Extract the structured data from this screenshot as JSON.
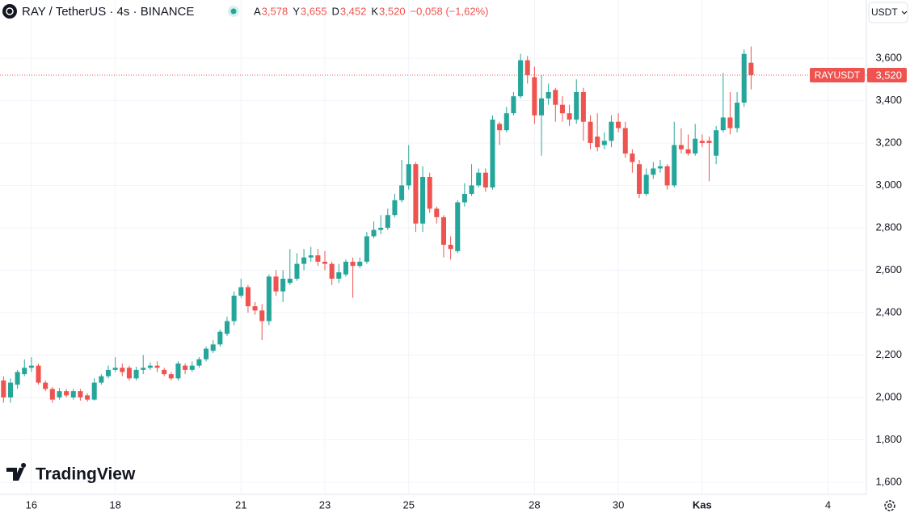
{
  "header": {
    "symbol": "RAY / TetherUS · 4s · BINANCE",
    "ohlc": [
      {
        "key": "A",
        "text": "3,578"
      },
      {
        "key": "Y",
        "text": "3,655"
      },
      {
        "key": "D",
        "text": "3,452"
      },
      {
        "key": "K",
        "text": "3,520"
      }
    ],
    "change": "−0,058 (−1,62%)",
    "currency": "USDT",
    "brand": "TradingView"
  },
  "chart_data": {
    "type": "candlestick",
    "categories": [
      null,
      null,
      null,
      null,
      "16",
      null,
      null,
      null,
      null,
      null,
      null,
      null,
      null,
      null,
      null,
      null,
      "18",
      null,
      null,
      null,
      null,
      null,
      null,
      null,
      null,
      null,
      null,
      null,
      null,
      null,
      null,
      null,
      null,
      null,
      "21",
      null,
      null,
      null,
      null,
      null,
      null,
      null,
      null,
      null,
      null,
      null,
      "23",
      null,
      null,
      null,
      null,
      null,
      null,
      null,
      null,
      null,
      null,
      null,
      "25",
      null,
      null,
      null,
      null,
      null,
      null,
      null,
      null,
      null,
      null,
      null,
      null,
      null,
      null,
      null,
      null,
      null,
      "28",
      null,
      null,
      null,
      null,
      null,
      null,
      null,
      null,
      null,
      null,
      null,
      "30",
      null,
      null,
      null,
      null,
      null,
      null,
      null,
      null,
      null,
      null,
      null,
      "Kas",
      null,
      null,
      null,
      null,
      null,
      null,
      null,
      null,
      null,
      null,
      null,
      null,
      null,
      null,
      null,
      null,
      null,
      "4",
      null,
      null,
      null,
      null,
      null
    ],
    "open": [
      2.08,
      2.0,
      2.06,
      2.11,
      2.14,
      2.15,
      2.07,
      2.04,
      2.0,
      2.03,
      2.0,
      2.03,
      2.01,
      1.99,
      2.07,
      2.1,
      2.13,
      2.14,
      2.14,
      2.09,
      2.13,
      2.14,
      2.15,
      2.13,
      2.11,
      2.09,
      2.15,
      2.13,
      2.15,
      2.18,
      2.22,
      2.25,
      2.3,
      2.36,
      2.48,
      2.52,
      2.43,
      2.41,
      2.36,
      2.57,
      2.5,
      2.54,
      2.56,
      2.63,
      2.66,
      2.67,
      2.64,
      2.63,
      2.56,
      2.58,
      2.64,
      2.62,
      2.64,
      2.76,
      2.79,
      2.8,
      2.86,
      2.93,
      3.0,
      3.1,
      2.82,
      3.04,
      2.89,
      2.85,
      2.72,
      2.69,
      2.92,
      2.96,
      3.0,
      3.06,
      2.99,
      3.29,
      3.26,
      3.34,
      3.42,
      3.59,
      3.51,
      3.33,
      3.41,
      3.45,
      3.38,
      3.34,
      3.31,
      3.44,
      3.3,
      3.23,
      3.19,
      3.21,
      3.3,
      3.27,
      3.15,
      3.1,
      2.96,
      3.05,
      3.08,
      3.09,
      3.0,
      3.19,
      3.17,
      3.15,
      3.21,
      3.21,
      3.14,
      3.26,
      3.32,
      3.27,
      3.39,
      3.578,
      null,
      null,
      null,
      null,
      null,
      null,
      null,
      null,
      null,
      null,
      null,
      null,
      null,
      null,
      null,
      null
    ],
    "high": [
      2.1,
      2.09,
      2.13,
      2.18,
      2.19,
      2.16,
      2.08,
      2.05,
      2.045,
      2.04,
      2.04,
      2.04,
      2.02,
      2.09,
      2.11,
      2.15,
      2.19,
      2.16,
      2.15,
      2.145,
      2.2,
      2.165,
      2.17,
      2.14,
      2.12,
      2.17,
      2.16,
      2.17,
      2.19,
      2.24,
      2.27,
      2.32,
      2.38,
      2.5,
      2.56,
      2.53,
      2.45,
      2.44,
      2.58,
      2.6,
      2.6,
      2.7,
      2.68,
      2.7,
      2.71,
      2.7,
      2.69,
      2.64,
      2.63,
      2.65,
      2.66,
      2.66,
      2.78,
      2.83,
      2.86,
      2.89,
      2.96,
      3.12,
      3.19,
      3.11,
      3.09,
      3.06,
      2.9,
      2.86,
      2.76,
      2.93,
      3.01,
      3.1,
      3.08,
      3.08,
      3.33,
      3.3,
      3.37,
      3.44,
      3.62,
      3.61,
      3.56,
      3.52,
      3.48,
      3.46,
      3.42,
      3.38,
      3.5,
      3.46,
      3.33,
      3.34,
      3.25,
      3.33,
      3.34,
      3.3,
      3.17,
      3.12,
      3.08,
      3.11,
      3.12,
      3.1,
      3.3,
      3.27,
      3.24,
      3.29,
      3.24,
      3.23,
      3.28,
      3.53,
      3.44,
      3.44,
      3.64,
      3.655,
      null,
      null,
      null,
      null,
      null,
      null,
      null,
      null,
      null,
      null,
      null,
      null,
      null,
      null,
      null,
      null
    ],
    "low": [
      1.975,
      1.975,
      2.04,
      2.1,
      2.12,
      2.06,
      2.03,
      1.975,
      1.99,
      2.0,
      1.99,
      1.985,
      1.98,
      1.985,
      2.06,
      2.09,
      2.12,
      2.1,
      2.08,
      2.08,
      2.11,
      2.13,
      2.12,
      2.1,
      2.08,
      2.08,
      2.11,
      2.12,
      2.14,
      2.17,
      2.21,
      2.24,
      2.29,
      2.34,
      2.47,
      2.4,
      2.39,
      2.27,
      2.34,
      2.48,
      2.45,
      2.53,
      2.55,
      2.6,
      2.64,
      2.62,
      2.6,
      2.53,
      2.54,
      2.57,
      2.47,
      2.61,
      2.63,
      2.75,
      2.77,
      2.79,
      2.85,
      2.92,
      2.98,
      2.78,
      2.78,
      2.87,
      2.82,
      2.66,
      2.65,
      2.68,
      2.9,
      2.95,
      2.99,
      2.97,
      2.98,
      3.19,
      3.25,
      3.33,
      3.41,
      3.48,
      3.29,
      3.14,
      3.38,
      3.3,
      3.3,
      3.28,
      3.29,
      3.21,
      3.17,
      3.16,
      3.17,
      3.18,
      3.25,
      3.13,
      3.06,
      2.94,
      2.95,
      3.03,
      3.06,
      2.98,
      2.99,
      3.15,
      3.14,
      3.14,
      3.18,
      3.02,
      3.1,
      3.25,
      3.24,
      3.25,
      3.37,
      3.452,
      null,
      null,
      null,
      null,
      null,
      null,
      null,
      null,
      null,
      null,
      null,
      null,
      null,
      null,
      null,
      null
    ],
    "close": [
      2.0,
      2.07,
      2.12,
      2.14,
      2.15,
      2.07,
      2.04,
      1.99,
      2.03,
      2.01,
      2.03,
      2.0,
      1.99,
      2.07,
      2.1,
      2.13,
      2.14,
      2.12,
      2.09,
      2.13,
      2.14,
      2.15,
      2.14,
      2.11,
      2.09,
      2.16,
      2.13,
      2.15,
      2.18,
      2.23,
      2.25,
      2.31,
      2.36,
      2.48,
      2.52,
      2.43,
      2.41,
      2.36,
      2.57,
      2.5,
      2.56,
      2.56,
      2.63,
      2.66,
      2.67,
      2.64,
      2.63,
      2.56,
      2.59,
      2.64,
      2.62,
      2.64,
      2.76,
      2.79,
      2.8,
      2.86,
      2.93,
      3.0,
      3.1,
      2.82,
      3.04,
      2.89,
      2.85,
      2.72,
      2.7,
      2.92,
      2.96,
      3.0,
      3.06,
      2.99,
      3.31,
      3.26,
      3.34,
      3.42,
      3.59,
      3.52,
      3.33,
      3.41,
      3.44,
      3.38,
      3.34,
      3.31,
      3.44,
      3.3,
      3.2,
      3.18,
      3.21,
      3.3,
      3.27,
      3.15,
      3.11,
      2.96,
      3.05,
      3.08,
      3.09,
      3.0,
      3.19,
      3.17,
      3.15,
      3.22,
      3.2,
      3.2,
      3.26,
      3.32,
      3.27,
      3.39,
      3.62,
      3.52,
      null,
      null,
      null,
      null,
      null,
      null,
      null,
      null,
      null,
      null,
      null,
      null,
      null,
      null,
      null,
      null
    ],
    "up_color": "#26a69a",
    "down_color": "#ef5350",
    "ylim": [
      1.543,
      3.874
    ],
    "yticks": [
      {
        "value": 1.6,
        "label": "1,600"
      },
      {
        "value": 1.8,
        "label": "1,800"
      },
      {
        "value": 2.0,
        "label": "2,000"
      },
      {
        "value": 2.2,
        "label": "2,200"
      },
      {
        "value": 2.4,
        "label": "2,400"
      },
      {
        "value": 2.6,
        "label": "2,600"
      },
      {
        "value": 2.8,
        "label": "2,800"
      },
      {
        "value": 3.0,
        "label": "3,000"
      },
      {
        "value": 3.2,
        "label": "3,200"
      },
      {
        "value": 3.4,
        "label": "3,400"
      },
      {
        "value": 3.6,
        "label": "3,600"
      }
    ],
    "grid": true,
    "last_price": {
      "name": "RAYUSDT",
      "value": 3.52,
      "label": "3,520"
    }
  }
}
